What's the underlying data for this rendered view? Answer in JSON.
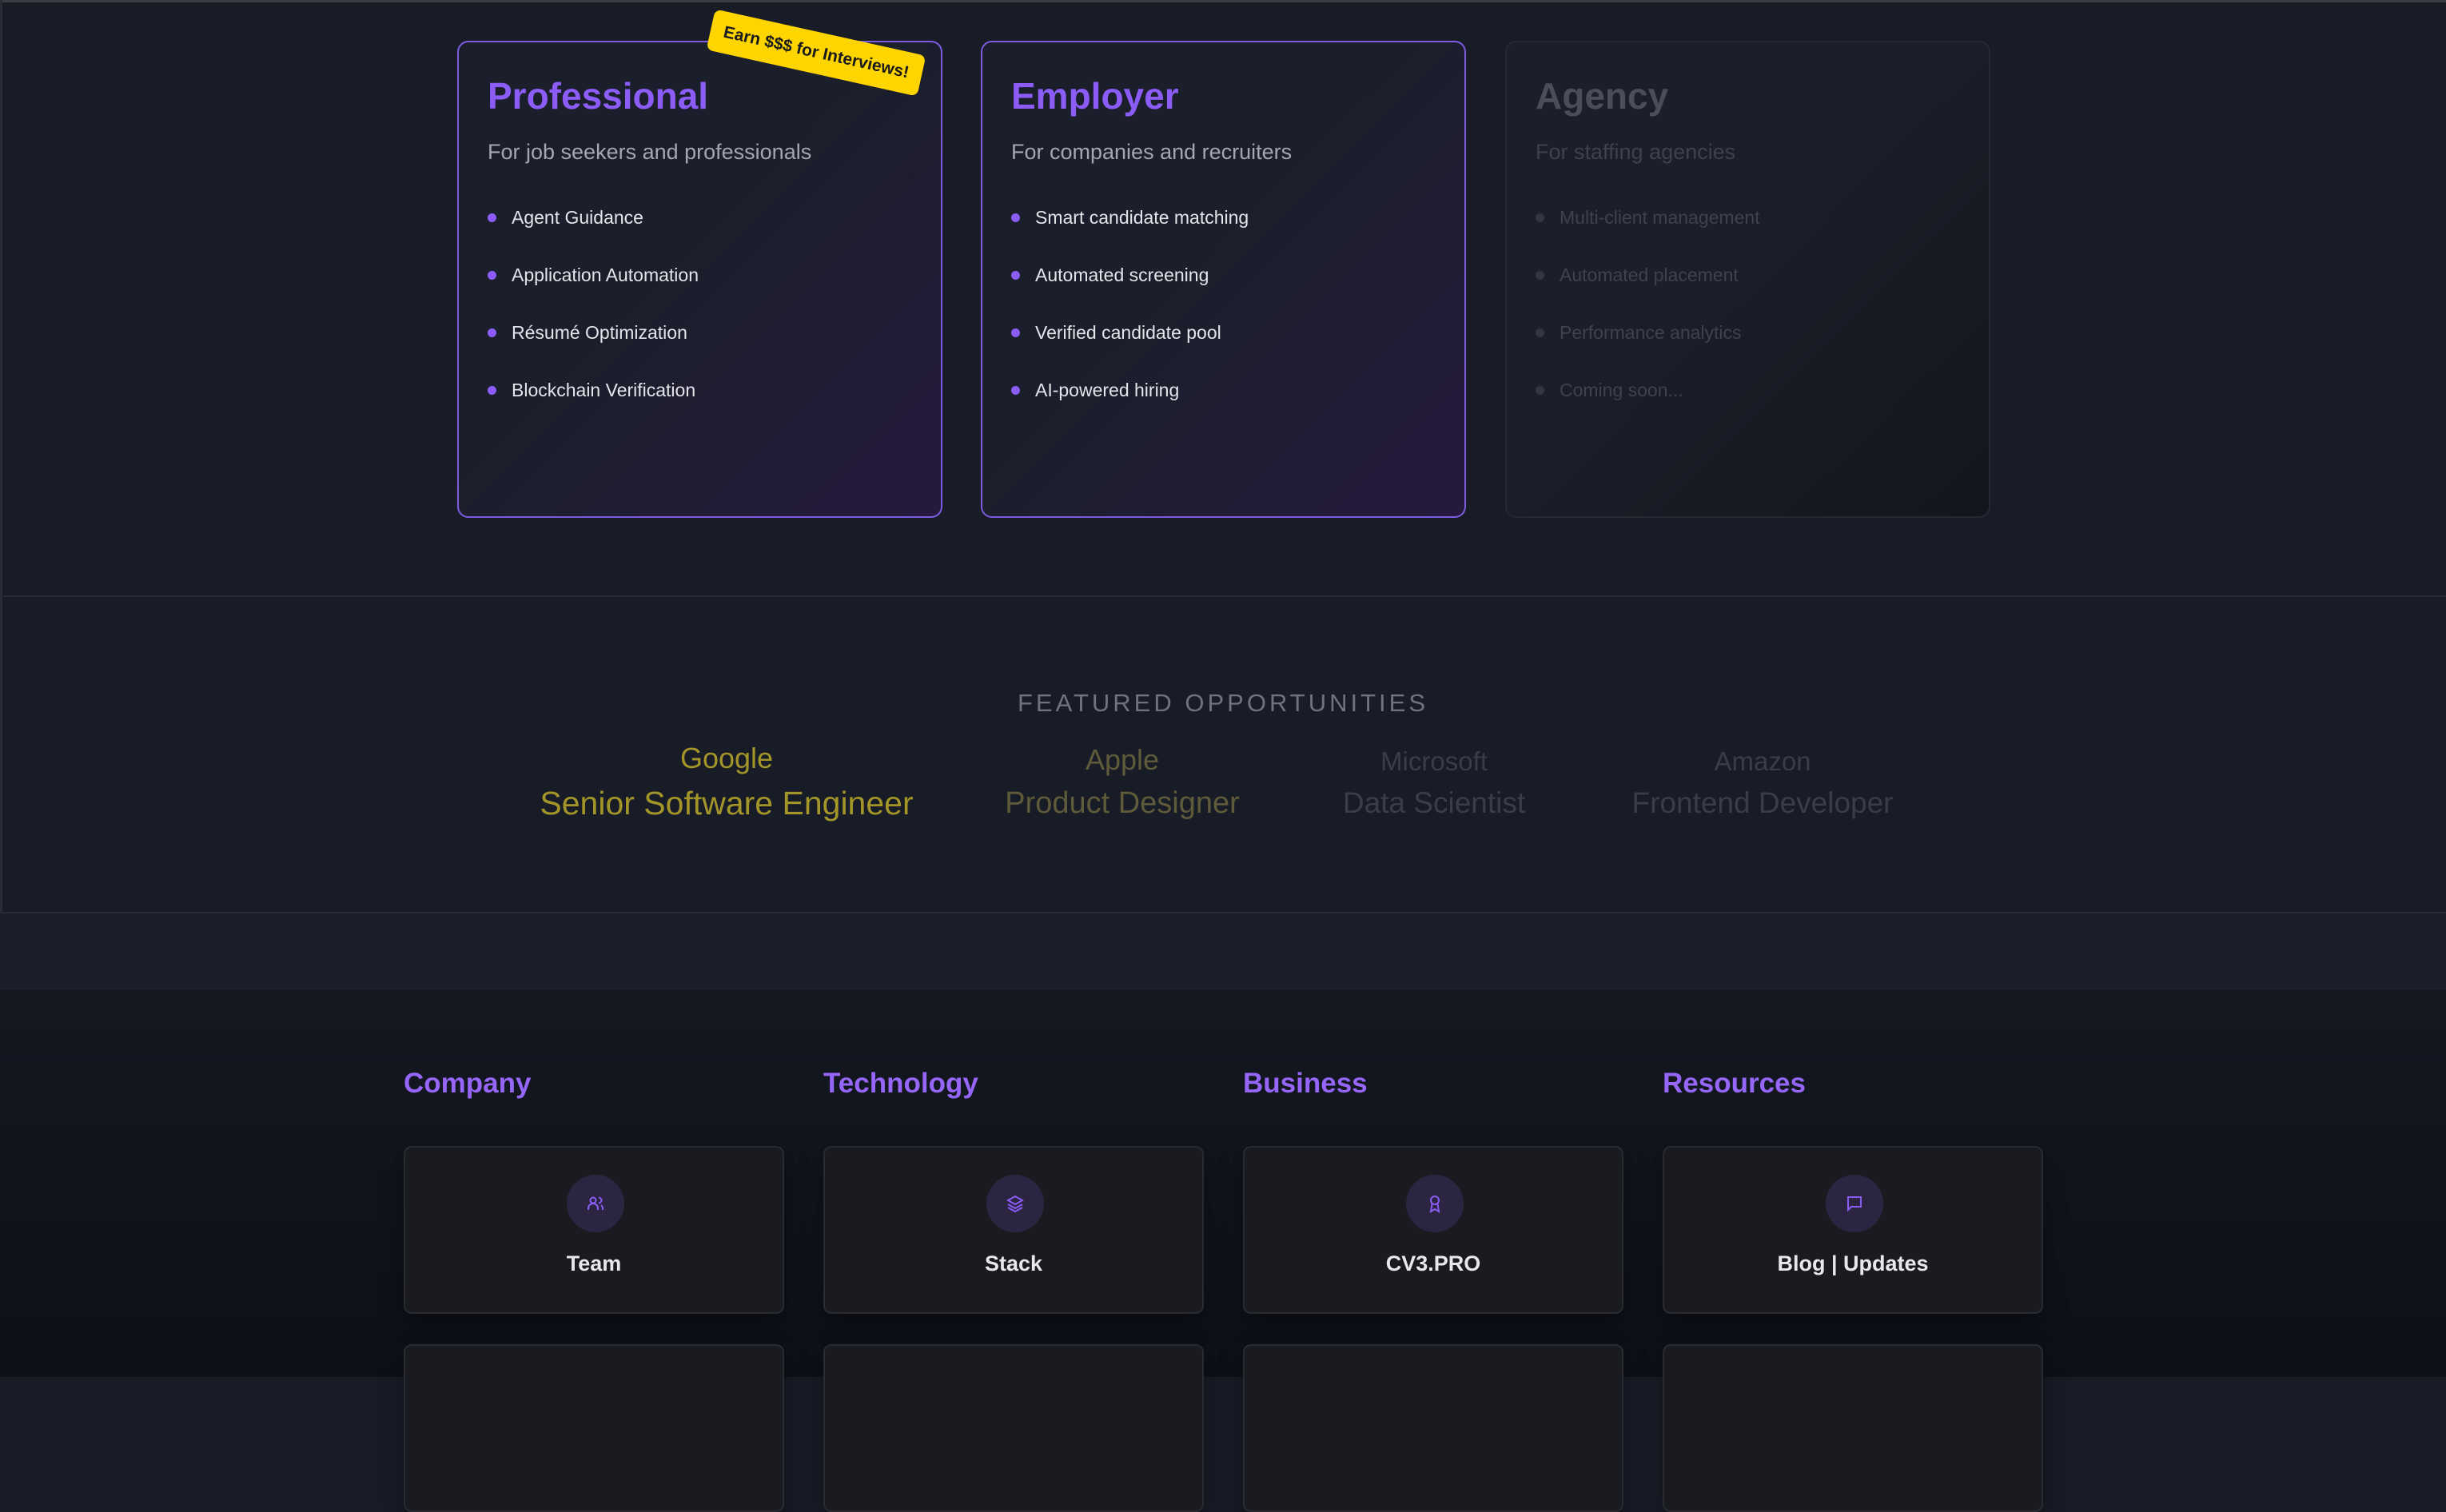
{
  "plans": [
    {
      "title": "Professional",
      "subtitle": "For job seekers and professionals",
      "features": [
        "Agent Guidance",
        "Application Automation",
        "Résumé Optimization",
        "Blockchain Verification"
      ],
      "badge": "Earn $$$ for Interviews!",
      "state": "active"
    },
    {
      "title": "Employer",
      "subtitle": "For companies and recruiters",
      "features": [
        "Smart candidate matching",
        "Automated screening",
        "Verified candidate pool",
        "AI-powered hiring"
      ],
      "state": "active"
    },
    {
      "title": "Agency",
      "subtitle": "For staffing agencies",
      "features": [
        "Multi-client management",
        "Automated placement",
        "Performance analytics",
        "Coming soon..."
      ],
      "state": "disabled"
    }
  ],
  "featured": {
    "heading": "FEATURED OPPORTUNITIES",
    "items": [
      {
        "company": "Google",
        "role": "Senior Software Engineer",
        "color": "#a39528"
      },
      {
        "company": "Apple",
        "role": "Product Designer",
        "color": "#5e5a3a"
      },
      {
        "company": "Microsoft",
        "role": "Data Scientist",
        "color": "#3a3d46"
      },
      {
        "company": "Amazon",
        "role": "Frontend Developer",
        "color": "#3a3d46"
      }
    ]
  },
  "footer": {
    "columns": [
      {
        "heading": "Company",
        "card": "Team",
        "icon": "users-icon"
      },
      {
        "heading": "Technology",
        "card": "Stack",
        "icon": "layers-icon"
      },
      {
        "heading": "Business",
        "card": "CV3.PRO",
        "icon": "award-icon"
      },
      {
        "heading": "Resources",
        "card": "Blog | Updates",
        "icon": "message-square-icon"
      }
    ]
  },
  "colors": {
    "accent": "#8b5cf6",
    "badge": "#ffd500"
  }
}
